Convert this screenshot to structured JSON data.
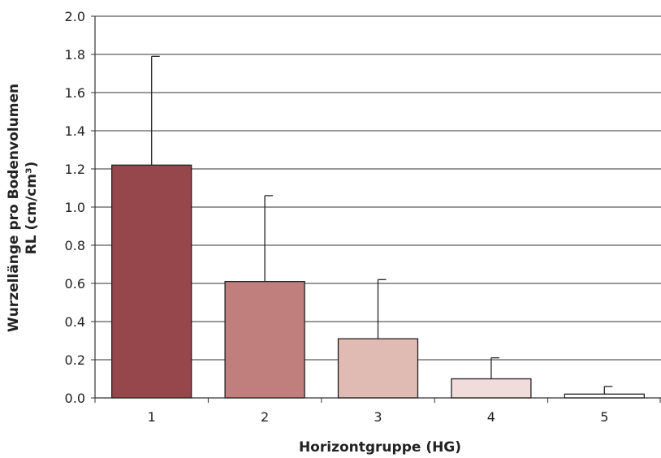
{
  "chart_data": {
    "type": "bar",
    "categories": [
      "1",
      "2",
      "3",
      "4",
      "5"
    ],
    "values": [
      1.22,
      0.61,
      0.31,
      0.1,
      0.02
    ],
    "errors": [
      0.57,
      0.45,
      0.31,
      0.11,
      0.04
    ],
    "colors": [
      "#96474B",
      "#C07E7D",
      "#DFBBB3",
      "#F0DCDA",
      "#FFFFFF"
    ],
    "xlabel": "Horizontgruppe (HG)",
    "ylabel_line1": "Wurzellänge pro Bodenvolumen",
    "ylabel_line2": "RL (cm/cm³)",
    "ylim": [
      0,
      2.0
    ],
    "yticks": [
      "0.0",
      "0.2",
      "0.4",
      "0.6",
      "0.8",
      "1.0",
      "1.2",
      "1.4",
      "1.6",
      "1.8",
      "2.0"
    ],
    "grid": true
  }
}
